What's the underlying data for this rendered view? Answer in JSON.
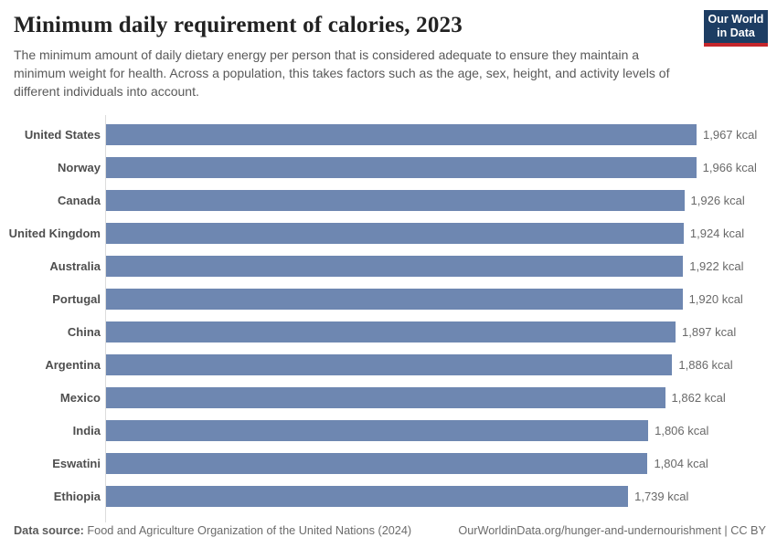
{
  "header": {
    "title": "Minimum daily requirement of calories, 2023",
    "subtitle": "The minimum amount of daily dietary energy per person that is considered adequate to ensure they maintain a minimum weight for health. Across a population, this takes factors such as the age, sex, height, and activity levels of different individuals into account.",
    "logo": {
      "line1": "Our World",
      "line2": "in Data"
    }
  },
  "chart_data": {
    "type": "bar",
    "orientation": "horizontal",
    "title": "Minimum daily requirement of calories, 2023",
    "unit": "kcal",
    "categories": [
      "United States",
      "Norway",
      "Canada",
      "United Kingdom",
      "Australia",
      "Portugal",
      "China",
      "Argentina",
      "Mexico",
      "India",
      "Eswatini",
      "Ethiopia"
    ],
    "values": [
      1967,
      1966,
      1926,
      1924,
      1922,
      1920,
      1897,
      1886,
      1862,
      1806,
      1804,
      1739
    ],
    "value_labels": [
      "1,967 kcal",
      "1,966 kcal",
      "1,926 kcal",
      "1,924 kcal",
      "1,922 kcal",
      "1,920 kcal",
      "1,897 kcal",
      "1,886 kcal",
      "1,862 kcal",
      "1,806 kcal",
      "1,804 kcal",
      "1,739 kcal"
    ],
    "xlim": [
      0,
      1967
    ],
    "grid": false,
    "legend": "none",
    "bar_color": "#6e87b1",
    "axis_color": "#dddddd"
  },
  "footer": {
    "datasource_label": "Data source:",
    "datasource_text": " Food and Agriculture Organization of the United Nations (2024)",
    "citation": "OurWorldinData.org/hunger-and-undernourishment | CC BY"
  }
}
